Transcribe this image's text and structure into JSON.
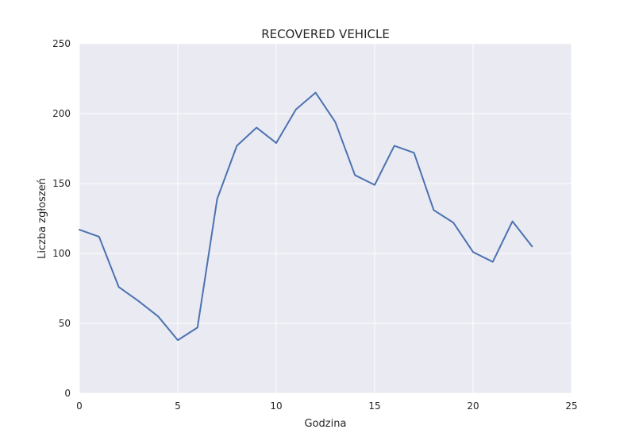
{
  "chart_data": {
    "type": "line",
    "title": "RECOVERED VEHICLE",
    "xlabel": "Godzina",
    "ylabel": "Liczba zgłoszeń",
    "xlim": [
      0,
      25
    ],
    "ylim": [
      0,
      250
    ],
    "xticks": [
      0,
      5,
      10,
      15,
      20,
      25
    ],
    "yticks": [
      0,
      50,
      100,
      150,
      200,
      250
    ],
    "grid": true,
    "legend": "none",
    "colors": {
      "background": "#eaeaf2",
      "grid": "#ffffff",
      "line": "#4c72b0"
    },
    "series": [
      {
        "x": [
          0,
          1,
          2,
          3,
          4,
          5,
          6,
          7,
          8,
          9,
          10,
          11,
          12,
          13,
          14,
          15,
          16,
          17,
          18,
          19,
          20,
          21,
          22,
          23
        ],
        "y": [
          117,
          112,
          76,
          66,
          55,
          38,
          47,
          139,
          177,
          190,
          179,
          203,
          215,
          194,
          156,
          149,
          177,
          172,
          131,
          122,
          101,
          94,
          123,
          105
        ]
      }
    ]
  }
}
